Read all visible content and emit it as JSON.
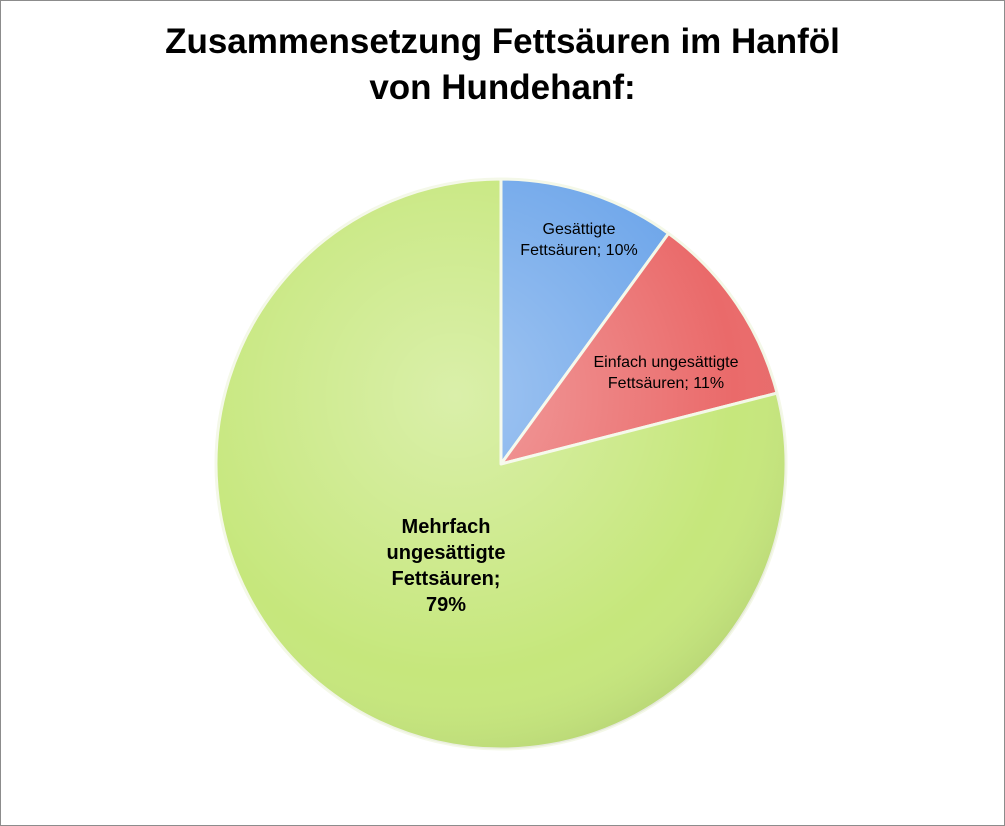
{
  "chart_data": {
    "type": "pie",
    "title": "Zusammensetzung Fettsäuren im Hanföl\nvon Hundehanf:",
    "values": [
      10,
      11,
      79
    ],
    "value_labels": [
      "Gesättigte\nFettsäuren; 10%",
      "Einfach ungesättigte\nFettsäuren; 11%",
      "Mehrfach\nungesättigte\nFettsäuren;\n79%"
    ],
    "colors": [
      "#6ea6ea",
      "#ea6a6a",
      "#c6e77c"
    ]
  }
}
